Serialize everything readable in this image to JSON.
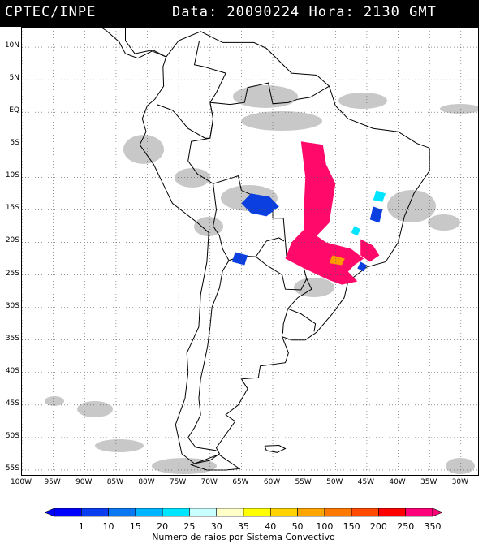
{
  "header": {
    "agency": "CPTEC/INPE",
    "datetime": "Data: 20090224 Hora: 2130 GMT"
  },
  "map": {
    "lat_labels": [
      "10N",
      "5N",
      "EQ",
      "5S",
      "10S",
      "15S",
      "20S",
      "25S",
      "30S",
      "35S",
      "40S",
      "45S",
      "50S",
      "55S"
    ],
    "lat_values": [
      10,
      5,
      0,
      -5,
      -10,
      -15,
      -20,
      -25,
      -30,
      -35,
      -40,
      -45,
      -50,
      -55
    ],
    "lon_labels": [
      "100W",
      "95W",
      "90W",
      "85W",
      "80W",
      "75W",
      "70W",
      "65W",
      "60W",
      "55W",
      "50W",
      "45W",
      "40W",
      "35W",
      "30W"
    ],
    "lon_values": [
      -100,
      -95,
      -90,
      -85,
      -80,
      -75,
      -70,
      -65,
      -60,
      -55,
      -50,
      -45,
      -40,
      -35,
      -30
    ],
    "lon_range": [
      -100,
      -27
    ],
    "lat_range": [
      -56,
      13
    ],
    "gridlines": "dotted",
    "colors": {
      "land_outline": "#000000",
      "cloud_cover": "#c8c8c8",
      "lightning_1": "#0b3fe0",
      "lightning_25": "#00e5ff",
      "lightning_100": "#ff9a00",
      "lightning_350": "#ff0a6a"
    }
  },
  "colorbar": {
    "labels": [
      "1",
      "10",
      "15",
      "20",
      "25",
      "30",
      "35",
      "40",
      "50",
      "100",
      "150",
      "200",
      "250",
      "350"
    ],
    "colors": [
      "#0000ff",
      "#0a3cf0",
      "#0a78f0",
      "#00b4ff",
      "#00e6ff",
      "#c8ffff",
      "#ffffc8",
      "#ffff00",
      "#ffd200",
      "#ffa500",
      "#ff7800",
      "#ff4b00",
      "#ff0000",
      "#ff0078"
    ],
    "title": "Numero de raios por Sistema Convectivo"
  }
}
